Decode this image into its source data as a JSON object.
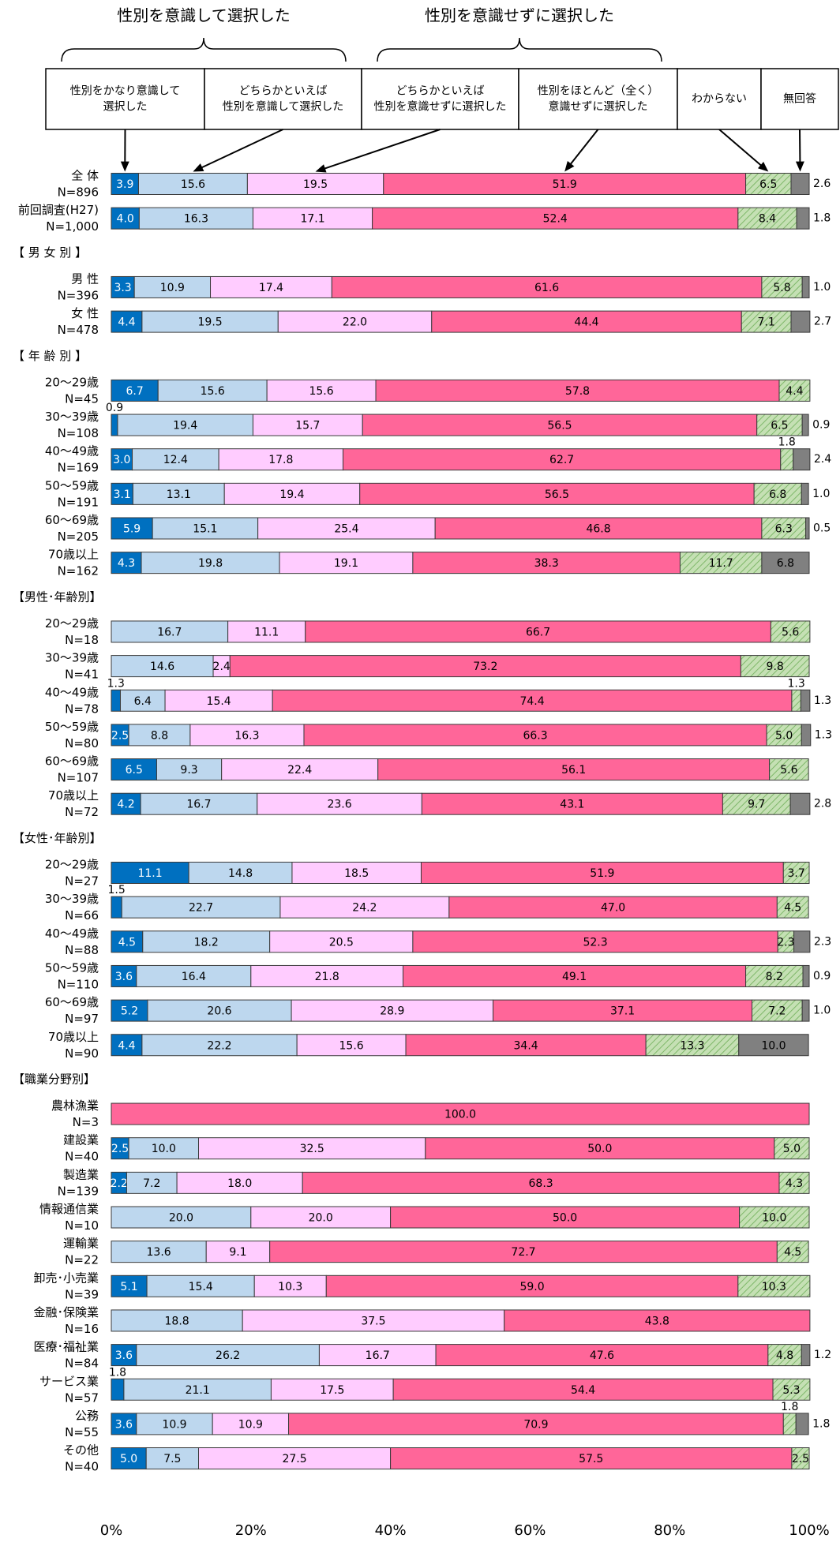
{
  "chart_data": {
    "type": "bar",
    "orientation": "horizontal",
    "stacked": true,
    "group_labels": [
      "性別を意識して選択した",
      "性別を意識せずに選択した"
    ],
    "categories": [
      "全 体",
      "前回調査(H27)",
      "【 男 女 別 】",
      "男 性",
      "女 性",
      "【 年 齢 別 】",
      "20〜29歳",
      "30〜39歳",
      "40〜49歳",
      "50〜59歳",
      "60〜69歳",
      "70歳以上",
      "【男性･年齢別】",
      "20〜29歳",
      "30〜39歳",
      "40〜49歳",
      "50〜59歳",
      "60〜69歳",
      "70歳以上",
      "【女性･年齢別】",
      "20〜29歳",
      "30〜39歳",
      "40〜49歳",
      "50〜59歳",
      "60〜69歳",
      "70歳以上",
      "【職業分野別】",
      "農林漁業",
      "建設業",
      "製造業",
      "情報通信業",
      "運輸業",
      "卸売･小売業",
      "金融･保険業",
      "医療･福祉業",
      "サービス業",
      "公務",
      "その他"
    ],
    "n_labels": [
      "N=896",
      "N=1,000",
      null,
      "N=396",
      "N=478",
      null,
      "N=45",
      "N=108",
      "N=169",
      "N=191",
      "N=205",
      "N=162",
      null,
      "N=18",
      "N=41",
      "N=78",
      "N=80",
      "N=107",
      "N=72",
      null,
      "N=27",
      "N=66",
      "N=88",
      "N=110",
      "N=97",
      "N=90",
      null,
      "N=3",
      "N=40",
      "N=139",
      "N=10",
      "N=22",
      "N=39",
      "N=16",
      "N=84",
      "N=57",
      "N=55",
      "N=40"
    ],
    "series": [
      {
        "name": "性別をかなり意識して\n選択した",
        "color": "#0070c0",
        "label_color": "#ffffff",
        "values": [
          3.9,
          4.0,
          null,
          3.3,
          4.4,
          null,
          6.7,
          0.9,
          3.0,
          3.1,
          5.9,
          4.3,
          null,
          null,
          null,
          1.3,
          2.5,
          6.5,
          4.2,
          null,
          11.1,
          1.5,
          4.5,
          3.6,
          5.2,
          4.4,
          null,
          null,
          2.5,
          2.2,
          null,
          null,
          5.1,
          null,
          3.6,
          1.8,
          3.6,
          5.0
        ],
        "value_labels": [
          "3.9",
          "4.0",
          null,
          "3.3",
          "4.4",
          null,
          "6.7",
          "0.9",
          "3.0",
          "3.1",
          "5.9",
          "4.3",
          null,
          null,
          null,
          "1.3",
          "2.5",
          "6.5",
          "4.2",
          null,
          "11.1",
          "1.5",
          "4.5",
          "3.6",
          "5.2",
          "4.4",
          null,
          null,
          "2.5",
          "2.2",
          null,
          null,
          "5.1",
          null,
          "3.6",
          "1.8",
          "3.6",
          "5.0"
        ]
      },
      {
        "name": "どちらかといえば\n性別を意識して選択した",
        "color": "#bdd7ee",
        "label_color": "#000000",
        "values": [
          15.6,
          16.3,
          null,
          10.9,
          19.5,
          null,
          15.6,
          19.4,
          12.4,
          13.1,
          15.1,
          19.8,
          null,
          16.7,
          14.6,
          6.4,
          8.8,
          9.3,
          16.7,
          null,
          14.8,
          22.7,
          18.2,
          16.4,
          20.6,
          22.2,
          null,
          null,
          10.0,
          7.2,
          20.0,
          13.6,
          15.4,
          18.8,
          26.2,
          21.1,
          10.9,
          7.5
        ],
        "value_labels": [
          "15.6",
          "16.3",
          null,
          "10.9",
          "19.5",
          null,
          "15.6",
          "19.4",
          "12.4",
          "13.1",
          "15.1",
          "19.8",
          null,
          "16.7",
          "14.6",
          "6.4",
          "8.8",
          "9.3",
          "16.7",
          null,
          "14.8",
          "22.7",
          "18.2",
          "16.4",
          "20.6",
          "22.2",
          null,
          null,
          "10.0",
          "7.2",
          "20.0",
          "13.6",
          "15.4",
          "18.8",
          "26.2",
          "21.1",
          "10.9",
          "7.5"
        ]
      },
      {
        "name": "どちらかといえば\n性別を意識せずに選択した",
        "color": "#ffccff",
        "label_color": "#000000",
        "values": [
          19.5,
          17.1,
          null,
          17.4,
          22.0,
          null,
          15.6,
          15.7,
          17.8,
          19.4,
          25.4,
          19.1,
          null,
          11.1,
          2.4,
          15.4,
          16.3,
          22.4,
          23.6,
          null,
          18.5,
          24.2,
          20.5,
          21.8,
          28.9,
          15.6,
          null,
          null,
          32.5,
          18.0,
          20.0,
          9.1,
          10.3,
          37.5,
          16.7,
          17.5,
          10.9,
          27.5
        ],
        "value_labels": [
          "19.5",
          "17.1",
          null,
          "17.4",
          "22.0",
          null,
          "15.6",
          "15.7",
          "17.8",
          "19.4",
          "25.4",
          "19.1",
          null,
          "11.1",
          "2.4",
          "15.4",
          "16.3",
          "22.4",
          "23.6",
          null,
          "18.5",
          "24.2",
          "20.5",
          "21.8",
          "28.9",
          "15.6",
          null,
          null,
          "32.5",
          "18.0",
          "20.0",
          "9.1",
          "10.3",
          "37.5",
          "16.7",
          "17.5",
          "10.9",
          "27.5"
        ]
      },
      {
        "name": "性別をほとんど（全く）\n意識せずに選択した",
        "color": "#ff6699",
        "label_color": "#000000",
        "values": [
          51.9,
          52.4,
          null,
          61.6,
          44.4,
          null,
          57.8,
          56.5,
          62.7,
          56.5,
          46.8,
          38.3,
          null,
          66.7,
          73.2,
          74.4,
          66.3,
          56.1,
          43.1,
          null,
          51.9,
          47.0,
          52.3,
          49.1,
          37.1,
          34.4,
          null,
          100.0,
          50.0,
          68.3,
          50.0,
          72.7,
          59.0,
          43.8,
          47.6,
          54.4,
          70.9,
          57.5
        ],
        "value_labels": [
          "51.9",
          "52.4",
          null,
          "61.6",
          "44.4",
          null,
          "57.8",
          "56.5",
          "62.7",
          "56.5",
          "46.8",
          "38.3",
          null,
          "66.7",
          "73.2",
          "74.4",
          "66.3",
          "56.1",
          "43.1",
          null,
          "51.9",
          "47.0",
          "52.3",
          "49.1",
          "37.1",
          "34.4",
          null,
          "100.0",
          "50.0",
          "68.3",
          "50.0",
          "72.7",
          "59.0",
          "43.8",
          "47.6",
          "54.4",
          "70.9",
          "57.5"
        ]
      },
      {
        "name": "わからない",
        "color": "#c5e0b4",
        "pattern": "diagonal",
        "label_color": "#000000",
        "values": [
          6.5,
          8.4,
          null,
          5.8,
          7.1,
          null,
          4.4,
          6.5,
          1.8,
          6.8,
          6.3,
          11.7,
          null,
          5.6,
          9.8,
          1.3,
          5.0,
          5.6,
          9.7,
          null,
          3.7,
          4.5,
          2.3,
          8.2,
          7.2,
          13.3,
          null,
          null,
          5.0,
          4.3,
          10.0,
          4.5,
          10.3,
          null,
          4.8,
          5.3,
          1.8,
          2.5
        ],
        "value_labels": [
          "6.5",
          "8.4",
          null,
          "5.8",
          "7.1",
          null,
          "4.4",
          "6.5",
          "1.8",
          "6.8",
          "6.3",
          "11.7",
          null,
          "5.6",
          "9.8",
          "1.3",
          "5.0",
          "5.6",
          "9.7",
          null,
          "3.7",
          "4.5",
          "2.3",
          "8.2",
          "7.2",
          "13.3",
          null,
          null,
          "5.0",
          "4.3",
          "10.0",
          "4.5",
          "10.3",
          null,
          "4.8",
          "5.3",
          "1.8",
          "2.5"
        ]
      },
      {
        "name": "無回答",
        "color": "#808080",
        "label_color": "#000000",
        "values": [
          2.6,
          1.8,
          null,
          1.0,
          2.7,
          null,
          null,
          0.9,
          2.4,
          1.0,
          0.5,
          6.8,
          null,
          null,
          null,
          1.3,
          1.3,
          null,
          2.8,
          null,
          null,
          null,
          2.3,
          0.9,
          1.0,
          10.0,
          null,
          null,
          null,
          null,
          null,
          null,
          null,
          null,
          1.2,
          null,
          1.8,
          null
        ],
        "value_labels": [
          "2.6",
          "1.8",
          null,
          "1.0",
          "2.7",
          null,
          null,
          "0.9",
          "2.4",
          "1.0",
          "0.5",
          "6.8",
          null,
          null,
          null,
          "1.3",
          "1.3",
          null,
          "2.8",
          null,
          null,
          null,
          "2.3",
          "0.9",
          "1.0",
          "10.0",
          null,
          null,
          null,
          null,
          null,
          null,
          null,
          null,
          "1.2",
          null,
          "1.8",
          null
        ]
      }
    ],
    "xlim": [
      0,
      100
    ],
    "xticks": [
      {
        "value": 0,
        "label": "0%"
      },
      {
        "value": 20,
        "label": "20%"
      },
      {
        "value": 40,
        "label": "40%"
      },
      {
        "value": 60,
        "label": "60%"
      },
      {
        "value": 80,
        "label": "80%"
      },
      {
        "value": 100,
        "label": "100%"
      }
    ]
  }
}
